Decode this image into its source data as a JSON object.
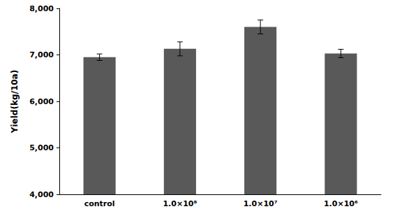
{
  "chart_data": {
    "type": "bar",
    "y_label": "Yield(kg/10a)",
    "categories": [
      "control",
      "1.0×10⁸",
      "1.0×10⁷",
      "1.0×10⁶"
    ],
    "values": [
      6950,
      7130,
      7600,
      7030
    ],
    "errors": [
      70,
      150,
      150,
      90
    ],
    "color": "#595959",
    "ylim": [
      4000,
      8000
    ],
    "yticks": [
      {
        "value": 4000,
        "label": "4,000"
      },
      {
        "value": 5000,
        "label": "5,000"
      },
      {
        "value": 6000,
        "label": "6,000"
      },
      {
        "value": 7000,
        "label": "7,000"
      },
      {
        "value": 8000,
        "label": "8,000"
      }
    ],
    "grid": false
  }
}
